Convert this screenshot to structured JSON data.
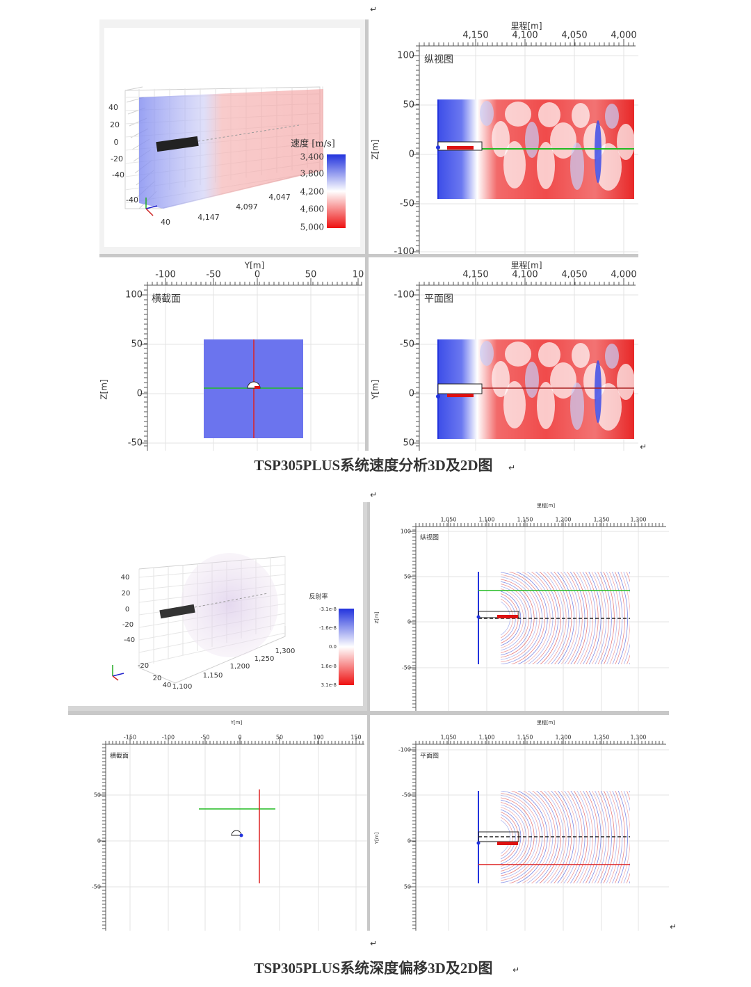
{
  "para_mark": "↵",
  "figure_1": {
    "panel_3d": {
      "z_labels": [
        "40",
        "20",
        "0",
        "-20",
        "-40"
      ],
      "x_labels": [
        "4,147",
        "4,097",
        "4,047"
      ],
      "y_labels": [
        "-40",
        "40"
      ],
      "colorbar_title": "速度 [m/s]",
      "colorbar_labels": [
        "3,400",
        "3,800",
        "4,200",
        "4,600",
        "5,000"
      ]
    },
    "longitudinal": {
      "label": "纵视图",
      "x_title": "里程[m]",
      "x_ticks": [
        "4,150",
        "4,100",
        "4,050",
        "4,000"
      ],
      "y_title": "Z[m]",
      "y_ticks": [
        "100",
        "50",
        "0",
        "-50",
        "-100"
      ]
    },
    "cross_section": {
      "label": "横截面",
      "x_title": "Y[m]",
      "x_ticks": [
        "-100",
        "-50",
        "0",
        "50",
        "10"
      ],
      "y_title": "Z[m]",
      "y_ticks": [
        "100",
        "50",
        "0",
        "-50"
      ]
    },
    "plan": {
      "label": "平面图",
      "x_title": "里程[m]",
      "x_ticks": [
        "4,150",
        "4,100",
        "4,050",
        "4,000"
      ],
      "y_title": "Y[m]",
      "y_ticks": [
        "-100",
        "-50",
        "0",
        "50"
      ]
    },
    "caption": "TSP305PLUS系统速度分析3D及2D图"
  },
  "figure_2": {
    "panel_3d": {
      "z_labels": [
        "40",
        "20",
        "0",
        "-20",
        "-40"
      ],
      "x_labels": [
        "1,100",
        "1,150",
        "1,200",
        "1,250",
        "1,300"
      ],
      "y_labels": [
        "-20",
        "20",
        "40"
      ],
      "colorbar_title": "反射率",
      "colorbar_labels": [
        "-3.1e-8",
        "-1.6e-8",
        "0.0",
        "1.6e-8",
        "3.1e-8"
      ]
    },
    "longitudinal": {
      "label": "纵视图",
      "x_title": "里程[m]",
      "x_ticks": [
        "1,050",
        "1,100",
        "1,150",
        "1,200",
        "1,250",
        "1,300"
      ],
      "y_title": "Z[m]",
      "y_ticks": [
        "100",
        "50",
        "0",
        "-50"
      ]
    },
    "cross_section": {
      "label": "横截面",
      "x_title": "Y[m]",
      "x_ticks": [
        "-150",
        "-100",
        "-50",
        "0",
        "50",
        "100",
        "150"
      ],
      "y_ticks": [
        "50",
        "0",
        "-50"
      ]
    },
    "plan": {
      "label": "平面图",
      "x_title": "里程[m]",
      "x_ticks": [
        "1,050",
        "1,100",
        "1,150",
        "1,200",
        "1,250",
        "1,300"
      ],
      "y_title": "Y[m]",
      "y_ticks": [
        "-100",
        "-50",
        "0",
        "50"
      ]
    },
    "caption": "TSP305PLUS系统深度偏移3D及2D图"
  }
}
